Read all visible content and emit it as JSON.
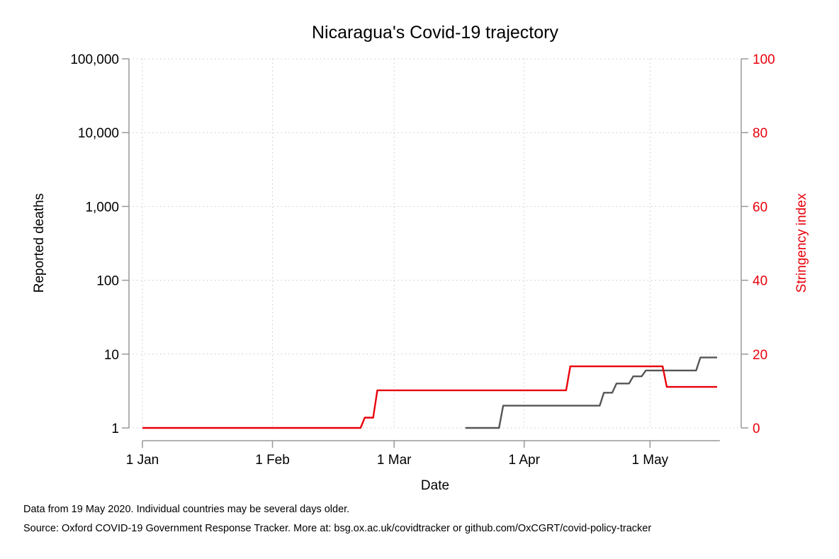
{
  "chart_data": {
    "type": "line",
    "title": "Nicaragua's Covid-19 trajectory",
    "xlabel": "Date",
    "ylabel_left": "Reported deaths",
    "ylabel_right": "Stringency index",
    "x_ticks": [
      "1 Jan",
      "1 Feb",
      "1 Mar",
      "1 Apr",
      "1 May"
    ],
    "x_range": [
      "2020-01-01",
      "2020-05-19"
    ],
    "y_left_scale": "log",
    "y_left_range": [
      1,
      100000
    ],
    "y_left_ticks": [
      "1",
      "10",
      "100",
      "1,000",
      "10,000",
      "100,000"
    ],
    "y_right_range": [
      0,
      100
    ],
    "y_right_ticks": [
      "0",
      "20",
      "40",
      "60",
      "80",
      "100"
    ],
    "grid": true,
    "colors": {
      "deaths": "#555555",
      "stringency": "#e8000b"
    },
    "series": [
      {
        "axis": "left",
        "points": [
          [
            "2020-03-18",
            1
          ],
          [
            "2020-03-26",
            1
          ],
          [
            "2020-03-27",
            2
          ],
          [
            "2020-04-19",
            2
          ],
          [
            "2020-04-20",
            3
          ],
          [
            "2020-04-22",
            3
          ],
          [
            "2020-04-23",
            4
          ],
          [
            "2020-04-26",
            4
          ],
          [
            "2020-04-27",
            5
          ],
          [
            "2020-04-29",
            5
          ],
          [
            "2020-04-30",
            6
          ],
          [
            "2020-05-12",
            6
          ],
          [
            "2020-05-13",
            9
          ],
          [
            "2020-05-17",
            9
          ]
        ]
      },
      {
        "axis": "right",
        "points": [
          [
            "2020-01-01",
            0
          ],
          [
            "2020-02-22",
            0
          ],
          [
            "2020-02-23",
            2.78
          ],
          [
            "2020-02-25",
            2.78
          ],
          [
            "2020-02-26",
            10.19
          ],
          [
            "2020-04-11",
            10.19
          ],
          [
            "2020-04-12",
            16.67
          ],
          [
            "2020-05-04",
            16.67
          ],
          [
            "2020-05-05",
            11.11
          ],
          [
            "2020-05-17",
            11.11
          ]
        ]
      }
    ]
  },
  "footnotes": {
    "data_note": "Data from 19 May 2020. Individual countries may be several days older.",
    "source": "Source: Oxford COVID-19 Government Response Tracker. More at: bsg.ox.ac.uk/covidtracker or github.com/OxCGRT/covid-policy-tracker"
  }
}
